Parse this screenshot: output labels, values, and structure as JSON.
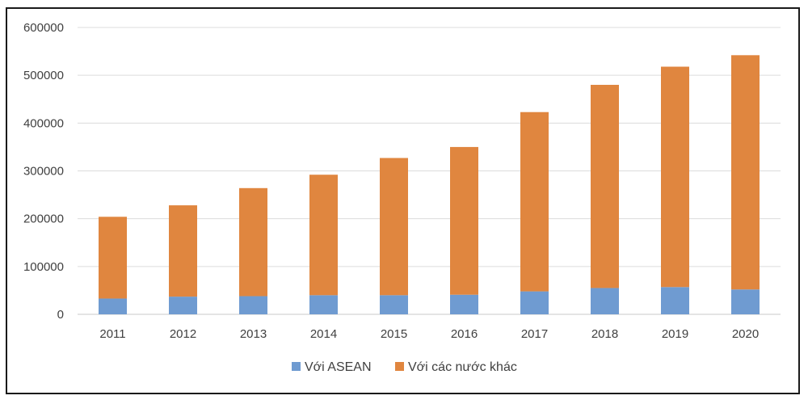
{
  "chart_data": {
    "type": "bar",
    "stacked": true,
    "categories": [
      "2011",
      "2012",
      "2013",
      "2014",
      "2015",
      "2016",
      "2017",
      "2018",
      "2019",
      "2020"
    ],
    "series": [
      {
        "name": "Với ASEAN",
        "color": "#6f9bd1",
        "values": [
          33000,
          37000,
          38000,
          40000,
          40000,
          41000,
          48000,
          55000,
          57000,
          52000
        ]
      },
      {
        "name": "Với các nước khác",
        "color": "#e0863f",
        "values": [
          171000,
          191000,
          226000,
          252000,
          287000,
          309000,
          375000,
          425000,
          461000,
          490000
        ]
      }
    ],
    "yticks": [
      "0",
      "100000",
      "200000",
      "300000",
      "400000",
      "500000",
      "600000"
    ],
    "ylim": [
      0,
      600000
    ],
    "grid": true,
    "legend_position": "bottom"
  }
}
